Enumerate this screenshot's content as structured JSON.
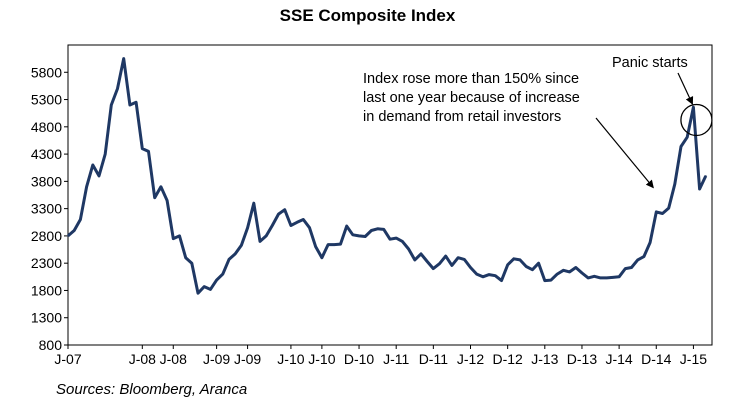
{
  "chart_data": {
    "type": "line",
    "title": "SSE Composite Index",
    "xlabel": "",
    "ylabel": "",
    "ylim": [
      800,
      6300
    ],
    "xlim": [
      "2007-01",
      "2015-09"
    ],
    "y_ticks": [
      800,
      1300,
      1800,
      2300,
      2800,
      3300,
      3800,
      4300,
      4800,
      5300,
      5800
    ],
    "y_tick_labels": [
      "800",
      "1300",
      "1800",
      "2300",
      "2800",
      "3300",
      "3800",
      "4300",
      "4800",
      "5300",
      "5800"
    ],
    "x_tick_labels": [
      {
        "label": "J-07",
        "date": "2007-01"
      },
      {
        "label": "J-08",
        "date": "2008-01"
      },
      {
        "label": "J-08",
        "date": "2008-06"
      },
      {
        "label": "J-09",
        "date": "2009-01"
      },
      {
        "label": "J-09",
        "date": "2009-06"
      },
      {
        "label": "J-10",
        "date": "2010-01"
      },
      {
        "label": "J-10",
        "date": "2010-06"
      },
      {
        "label": "D-10",
        "date": "2010-12"
      },
      {
        "label": "J-11",
        "date": "2011-06"
      },
      {
        "label": "D-11",
        "date": "2011-12"
      },
      {
        "label": "J-12",
        "date": "2012-06"
      },
      {
        "label": "D-12",
        "date": "2012-12"
      },
      {
        "label": "J-13",
        "date": "2013-06"
      },
      {
        "label": "D-13",
        "date": "2013-12"
      },
      {
        "label": "J-14",
        "date": "2014-06"
      },
      {
        "label": "D-14",
        "date": "2014-12"
      },
      {
        "label": "J-15",
        "date": "2015-06"
      }
    ],
    "grid": false,
    "legend": "none",
    "series": [
      {
        "color": "#1f3864",
        "points": [
          [
            "2007-01",
            2800
          ],
          [
            "2007-02",
            2900
          ],
          [
            "2007-03",
            3100
          ],
          [
            "2007-04",
            3700
          ],
          [
            "2007-05",
            4100
          ],
          [
            "2007-06",
            3900
          ],
          [
            "2007-07",
            4300
          ],
          [
            "2007-08",
            5200
          ],
          [
            "2007-09",
            5500
          ],
          [
            "2007-10",
            6050
          ],
          [
            "2007-11",
            5200
          ],
          [
            "2007-12",
            5250
          ],
          [
            "2008-01",
            4400
          ],
          [
            "2008-02",
            4350
          ],
          [
            "2008-03",
            3500
          ],
          [
            "2008-04",
            3700
          ],
          [
            "2008-05",
            3450
          ],
          [
            "2008-06",
            2750
          ],
          [
            "2008-07",
            2800
          ],
          [
            "2008-08",
            2400
          ],
          [
            "2008-09",
            2300
          ],
          [
            "2008-10",
            1750
          ],
          [
            "2008-11",
            1870
          ],
          [
            "2008-12",
            1820
          ],
          [
            "2009-01",
            1990
          ],
          [
            "2009-02",
            2100
          ],
          [
            "2009-03",
            2370
          ],
          [
            "2009-04",
            2470
          ],
          [
            "2009-05",
            2630
          ],
          [
            "2009-06",
            2950
          ],
          [
            "2009-07",
            3400
          ],
          [
            "2009-08",
            2700
          ],
          [
            "2009-09",
            2800
          ],
          [
            "2009-10",
            2990
          ],
          [
            "2009-11",
            3200
          ],
          [
            "2009-12",
            3280
          ],
          [
            "2010-01",
            2990
          ],
          [
            "2010-02",
            3050
          ],
          [
            "2010-03",
            3100
          ],
          [
            "2010-04",
            2950
          ],
          [
            "2010-05",
            2600
          ],
          [
            "2010-06",
            2400
          ],
          [
            "2010-07",
            2640
          ],
          [
            "2010-08",
            2640
          ],
          [
            "2010-09",
            2650
          ],
          [
            "2010-10",
            2980
          ],
          [
            "2010-11",
            2820
          ],
          [
            "2010-12",
            2800
          ],
          [
            "2011-01",
            2790
          ],
          [
            "2011-02",
            2900
          ],
          [
            "2011-03",
            2930
          ],
          [
            "2011-04",
            2920
          ],
          [
            "2011-05",
            2740
          ],
          [
            "2011-06",
            2760
          ],
          [
            "2011-07",
            2700
          ],
          [
            "2011-08",
            2560
          ],
          [
            "2011-09",
            2360
          ],
          [
            "2011-10",
            2470
          ],
          [
            "2011-11",
            2330
          ],
          [
            "2011-12",
            2200
          ],
          [
            "2012-01",
            2290
          ],
          [
            "2012-02",
            2430
          ],
          [
            "2012-03",
            2260
          ],
          [
            "2012-04",
            2400
          ],
          [
            "2012-05",
            2370
          ],
          [
            "2012-06",
            2220
          ],
          [
            "2012-07",
            2100
          ],
          [
            "2012-08",
            2050
          ],
          [
            "2012-09",
            2090
          ],
          [
            "2012-10",
            2070
          ],
          [
            "2012-11",
            1980
          ],
          [
            "2012-12",
            2270
          ],
          [
            "2013-01",
            2380
          ],
          [
            "2013-02",
            2360
          ],
          [
            "2013-03",
            2240
          ],
          [
            "2013-04",
            2180
          ],
          [
            "2013-05",
            2300
          ],
          [
            "2013-06",
            1980
          ],
          [
            "2013-07",
            1990
          ],
          [
            "2013-08",
            2100
          ],
          [
            "2013-09",
            2170
          ],
          [
            "2013-10",
            2140
          ],
          [
            "2013-11",
            2220
          ],
          [
            "2013-12",
            2120
          ],
          [
            "2014-01",
            2030
          ],
          [
            "2014-02",
            2060
          ],
          [
            "2014-03",
            2030
          ],
          [
            "2014-04",
            2030
          ],
          [
            "2014-05",
            2040
          ],
          [
            "2014-06",
            2050
          ],
          [
            "2014-07",
            2200
          ],
          [
            "2014-08",
            2220
          ],
          [
            "2014-09",
            2360
          ],
          [
            "2014-10",
            2420
          ],
          [
            "2014-11",
            2680
          ],
          [
            "2014-12",
            3240
          ],
          [
            "2015-01",
            3210
          ],
          [
            "2015-02",
            3310
          ],
          [
            "2015-03",
            3750
          ],
          [
            "2015-04",
            4440
          ],
          [
            "2015-05",
            4610
          ],
          [
            "2015-06",
            5160
          ],
          [
            "2015-07",
            3660
          ],
          [
            "2015-08",
            3900
          ]
        ]
      }
    ],
    "annotations": [
      {
        "text_lines": [
          "Index rose more than 150% since",
          "last one year because of increase",
          "in demand from retail investors"
        ],
        "arrow_to": [
          "2014-12",
          3320
        ]
      },
      {
        "text_lines": [
          "Panic starts"
        ],
        "circle_at": [
          "2015-06",
          4850
        ]
      }
    ]
  },
  "source_note": "Sources: Bloomberg, Aranca"
}
